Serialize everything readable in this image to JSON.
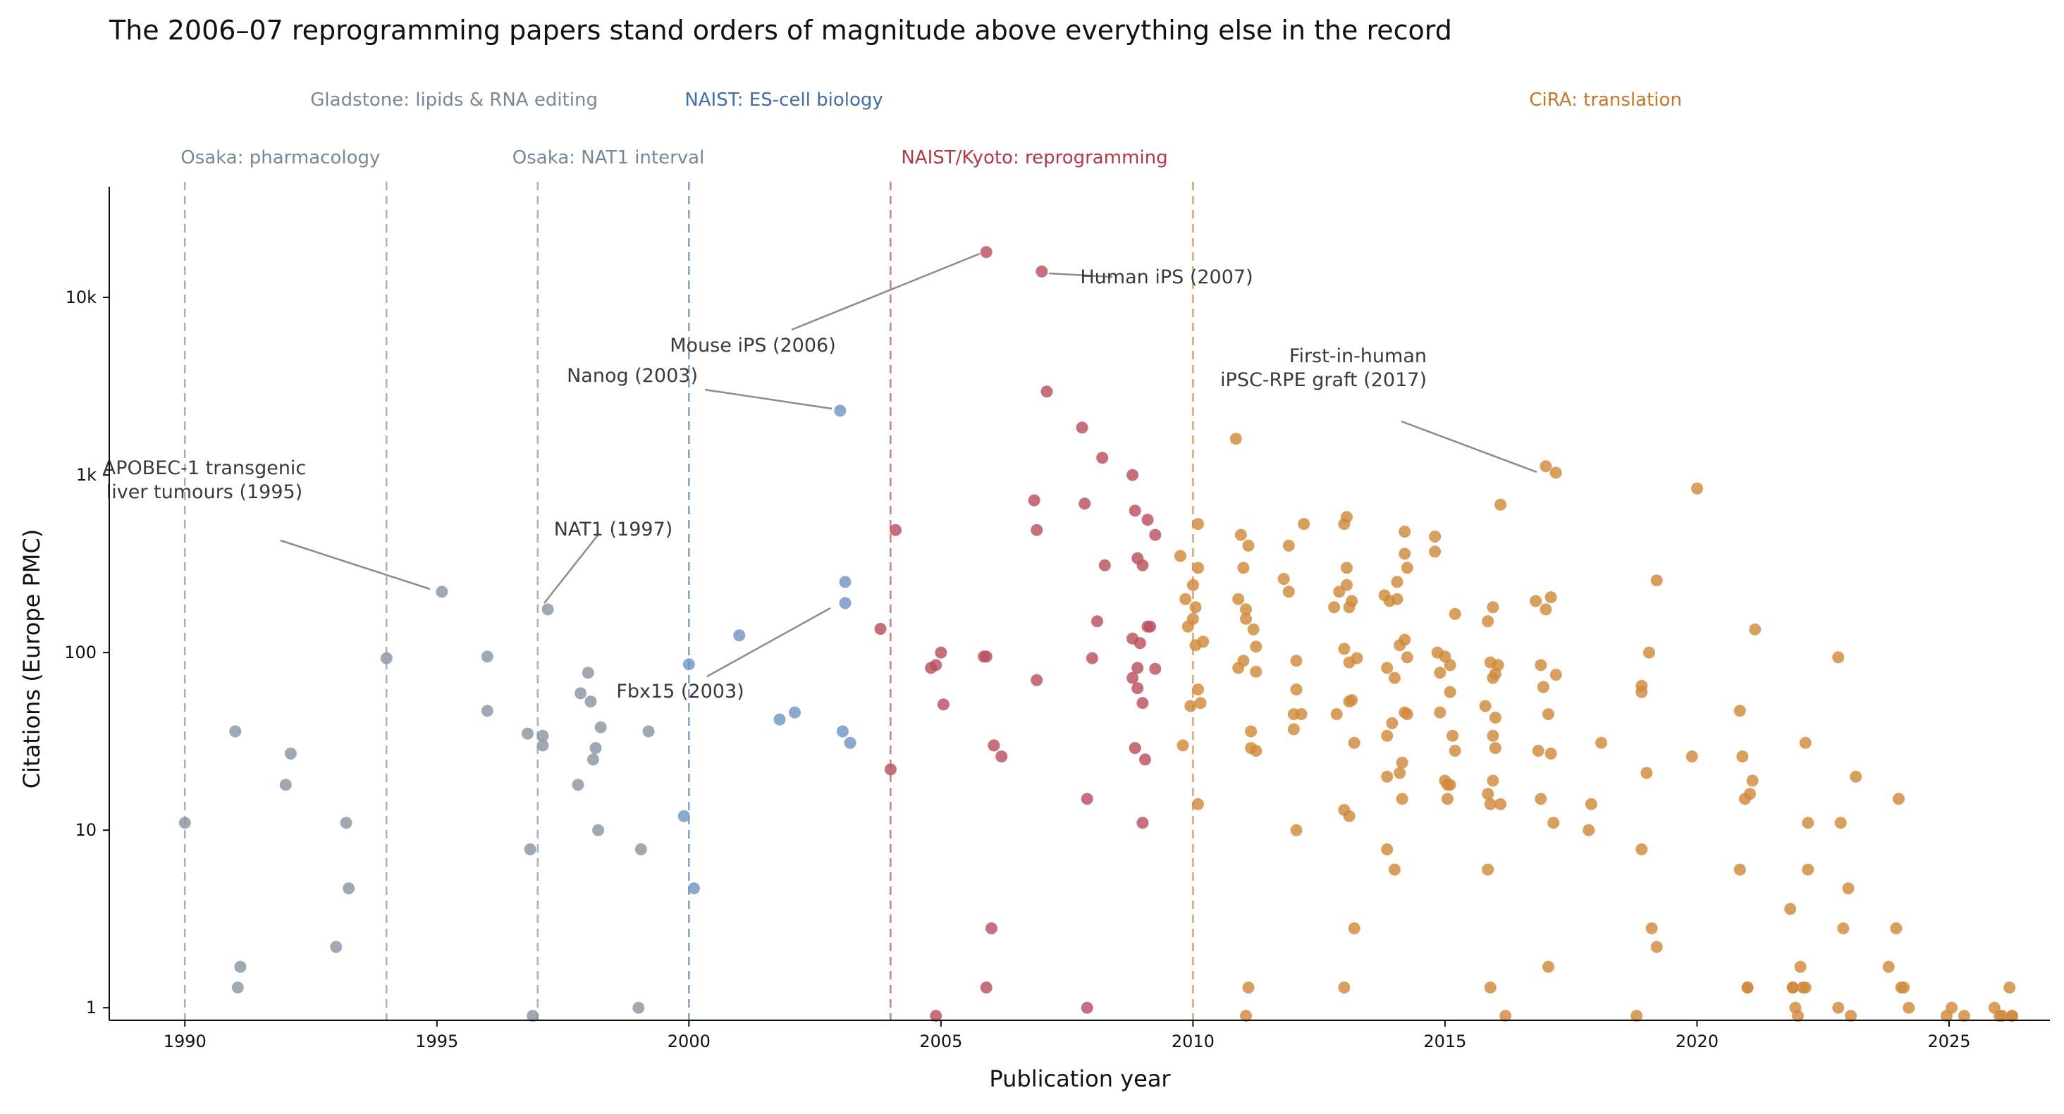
{
  "chart_data": {
    "type": "scatter",
    "title": "The 2006–07 reprogramming papers stand orders of magnitude above everything else in the record",
    "xlabel": "Publication year",
    "ylabel": "Citations (Europe PMC)",
    "xlim": [
      1988.5,
      2027
    ],
    "ylim_log": [
      0.85,
      42000
    ],
    "y_scale": "log",
    "x_ticks": [
      1990,
      1995,
      2000,
      2005,
      2010,
      2015,
      2020,
      2025
    ],
    "x_tick_labels": [
      "1990",
      "1995",
      "2000",
      "2005",
      "2010",
      "2015",
      "2020",
      "2025"
    ],
    "y_ticks": [
      1,
      10,
      100,
      1000,
      10000
    ],
    "y_tick_labels": [
      "1",
      "10",
      "100",
      "1k",
      "10k"
    ],
    "grid": false,
    "eras": [
      {
        "label": "Osaka: pharmacology",
        "start": 1990,
        "color": "#7a8896"
      },
      {
        "label": "Gladstone: lipids & RNA editing",
        "start": 1994,
        "color": "#7a8896"
      },
      {
        "label": "Osaka: NAT1 interval",
        "start": 1997,
        "color": "#7a8896"
      },
      {
        "label": "NAIST: ES-cell biology",
        "start": 2000,
        "color": "#3f6fa6"
      },
      {
        "label": "NAIST/Kyoto: reprogramming",
        "start": 2004,
        "color": "#b03a48"
      },
      {
        "label": "CiRA: translation",
        "start": 2010,
        "color": "#c8762a"
      }
    ],
    "series": [
      {
        "color": "#8a96a3",
        "points": [
          [
            1990,
            11
          ],
          [
            1991,
            36
          ],
          [
            1991.05,
            1.3
          ],
          [
            1991.1,
            1.7
          ],
          [
            1992,
            18
          ],
          [
            1992.1,
            27
          ],
          [
            1993,
            2.2
          ],
          [
            1993.2,
            11
          ],
          [
            1993.25,
            4.7
          ],
          [
            1994,
            93
          ],
          [
            1995.1,
            220
          ],
          [
            1996,
            95
          ],
          [
            1996,
            47
          ],
          [
            1996.8,
            35
          ],
          [
            1996.85,
            7.8
          ],
          [
            1996.9,
            0.9
          ],
          [
            1997.1,
            34
          ],
          [
            1997.1,
            30
          ],
          [
            1997.2,
            175
          ],
          [
            1997.8,
            18
          ],
          [
            1997.85,
            59
          ],
          [
            1998,
            77
          ],
          [
            1998.05,
            53
          ],
          [
            1998.1,
            25
          ],
          [
            1998.15,
            29
          ],
          [
            1998.2,
            10
          ],
          [
            1998.25,
            38
          ],
          [
            1999,
            1
          ],
          [
            1999.05,
            7.8
          ],
          [
            1999.2,
            36
          ]
        ]
      },
      {
        "color": "#7196c4",
        "points": [
          [
            1999.9,
            12
          ],
          [
            2000,
            86
          ],
          [
            2000.1,
            4.7
          ],
          [
            2001,
            125
          ],
          [
            2001.8,
            42
          ],
          [
            2002.1,
            46
          ],
          [
            2003,
            2300
          ],
          [
            2003.05,
            36
          ],
          [
            2003.1,
            250
          ],
          [
            2003.1,
            190
          ],
          [
            2003.2,
            31
          ]
        ]
      },
      {
        "color": "#b9505e",
        "points": [
          [
            2003.8,
            136
          ],
          [
            2004,
            22
          ],
          [
            2004.1,
            490
          ],
          [
            2004.8,
            82
          ],
          [
            2004.9,
            85
          ],
          [
            2004.9,
            0.9
          ],
          [
            2005,
            100
          ],
          [
            2005.05,
            51
          ],
          [
            2005.85,
            95
          ],
          [
            2005.9,
            95
          ],
          [
            2005.9,
            18000
          ],
          [
            2005.9,
            1.3
          ],
          [
            2006,
            2.8
          ],
          [
            2006.05,
            30
          ],
          [
            2006.2,
            26
          ],
          [
            2006.85,
            720
          ],
          [
            2006.9,
            490
          ],
          [
            2006.9,
            70
          ],
          [
            2007,
            14000
          ],
          [
            2007.1,
            2950
          ],
          [
            2007.8,
            1850
          ],
          [
            2007.85,
            690
          ],
          [
            2007.9,
            15
          ],
          [
            2007.9,
            1
          ],
          [
            2008,
            93
          ],
          [
            2008.1,
            150
          ],
          [
            2008.2,
            1250
          ],
          [
            2008.25,
            310
          ],
          [
            2008.8,
            1000
          ],
          [
            2008.85,
            630
          ],
          [
            2008.8,
            72
          ],
          [
            2008.8,
            120
          ],
          [
            2008.85,
            29
          ],
          [
            2008.9,
            340
          ],
          [
            2008.9,
            82
          ],
          [
            2008.9,
            63
          ],
          [
            2008.95,
            113
          ],
          [
            2009,
            310
          ],
          [
            2009,
            52
          ],
          [
            2009,
            11
          ],
          [
            2009.05,
            25
          ],
          [
            2009.1,
            140
          ],
          [
            2009.1,
            560
          ],
          [
            2009.15,
            140
          ],
          [
            2009.25,
            460
          ],
          [
            2009.25,
            81
          ]
        ]
      },
      {
        "color": "#d08a3c",
        "points": [
          [
            2009.75,
            350
          ],
          [
            2009.8,
            30
          ],
          [
            2009.85,
            200
          ],
          [
            2009.9,
            140
          ],
          [
            2009.95,
            50
          ],
          [
            2010,
            240
          ],
          [
            2010,
            155
          ],
          [
            2010.05,
            110
          ],
          [
            2010.05,
            180
          ],
          [
            2010.1,
            530
          ],
          [
            2010.1,
            300
          ],
          [
            2010.1,
            62
          ],
          [
            2010.1,
            14
          ],
          [
            2010.15,
            52
          ],
          [
            2010.2,
            115
          ],
          [
            2010.85,
            1600
          ],
          [
            2010.9,
            82
          ],
          [
            2010.9,
            200
          ],
          [
            2010.95,
            460
          ],
          [
            2011,
            300
          ],
          [
            2011,
            90
          ],
          [
            2011.05,
            175
          ],
          [
            2011.05,
            155
          ],
          [
            2011.05,
            0.9
          ],
          [
            2011.1,
            400
          ],
          [
            2011.1,
            1.3
          ],
          [
            2011.15,
            36
          ],
          [
            2011.15,
            29
          ],
          [
            2011.2,
            135
          ],
          [
            2011.25,
            78
          ],
          [
            2011.25,
            28
          ],
          [
            2011.25,
            108
          ],
          [
            2011.8,
            260
          ],
          [
            2011.9,
            400
          ],
          [
            2011.9,
            220
          ],
          [
            2012,
            45
          ],
          [
            2012,
            37
          ],
          [
            2012.05,
            90
          ],
          [
            2012.05,
            62
          ],
          [
            2012.05,
            10
          ],
          [
            2012.15,
            45
          ],
          [
            2012.2,
            530
          ],
          [
            2012.8,
            180
          ],
          [
            2012.85,
            45
          ],
          [
            2012.9,
            220
          ],
          [
            2013,
            1.3
          ],
          [
            2013,
            530
          ],
          [
            2013,
            13
          ],
          [
            2013,
            105
          ],
          [
            2013.05,
            580
          ],
          [
            2013.05,
            300
          ],
          [
            2013.05,
            240
          ],
          [
            2013.1,
            12
          ],
          [
            2013.1,
            53
          ],
          [
            2013.1,
            88
          ],
          [
            2013.1,
            180
          ],
          [
            2013.15,
            195
          ],
          [
            2013.15,
            54
          ],
          [
            2013.2,
            2.8
          ],
          [
            2013.2,
            31
          ],
          [
            2013.25,
            93
          ],
          [
            2013.8,
            210
          ],
          [
            2013.85,
            7.8
          ],
          [
            2013.85,
            34
          ],
          [
            2013.85,
            20
          ],
          [
            2013.85,
            82
          ],
          [
            2013.9,
            195
          ],
          [
            2013.95,
            40
          ],
          [
            2014,
            72
          ],
          [
            2014,
            6
          ],
          [
            2014.05,
            200
          ],
          [
            2014.05,
            250
          ],
          [
            2014.1,
            21
          ],
          [
            2014.1,
            110
          ],
          [
            2014.15,
            24
          ],
          [
            2014.15,
            15
          ],
          [
            2014.2,
            480
          ],
          [
            2014.2,
            118
          ],
          [
            2014.2,
            360
          ],
          [
            2014.2,
            46
          ],
          [
            2014.25,
            45
          ],
          [
            2014.25,
            300
          ],
          [
            2014.25,
            94
          ],
          [
            2014.8,
            450
          ],
          [
            2014.8,
            370
          ],
          [
            2014.85,
            100
          ],
          [
            2014.9,
            77
          ],
          [
            2014.9,
            46
          ],
          [
            2015,
            95
          ],
          [
            2015,
            19
          ],
          [
            2015.05,
            18
          ],
          [
            2015.05,
            15
          ],
          [
            2015.1,
            85
          ],
          [
            2015.1,
            18
          ],
          [
            2015.1,
            60
          ],
          [
            2015.15,
            34
          ],
          [
            2015.2,
            28
          ],
          [
            2015.2,
            165
          ],
          [
            2015.8,
            50
          ],
          [
            2015.85,
            6
          ],
          [
            2015.85,
            16
          ],
          [
            2015.85,
            150
          ],
          [
            2015.9,
            1.3
          ],
          [
            2015.9,
            14
          ],
          [
            2015.9,
            88
          ],
          [
            2015.95,
            180
          ],
          [
            2015.95,
            34
          ],
          [
            2015.95,
            72
          ],
          [
            2015.95,
            19
          ],
          [
            2016,
            43
          ],
          [
            2016,
            29
          ],
          [
            2016,
            76
          ],
          [
            2016.05,
            85
          ],
          [
            2016.1,
            14
          ],
          [
            2016.1,
            680
          ],
          [
            2016.2,
            0.9
          ],
          [
            2016.8,
            195
          ],
          [
            2016.85,
            28
          ],
          [
            2016.9,
            85
          ],
          [
            2016.9,
            15
          ],
          [
            2016.95,
            64
          ],
          [
            2017,
            1120
          ],
          [
            2017,
            175
          ],
          [
            2017.05,
            1.7
          ],
          [
            2017.05,
            45
          ],
          [
            2017.1,
            205
          ],
          [
            2017.1,
            27
          ],
          [
            2017.15,
            11
          ],
          [
            2017.2,
            1030
          ],
          [
            2017.2,
            75
          ],
          [
            2017.85,
            10
          ],
          [
            2017.9,
            14
          ],
          [
            2018.1,
            31
          ],
          [
            2018.8,
            0.9
          ],
          [
            2018.9,
            65
          ],
          [
            2018.9,
            60
          ],
          [
            2018.9,
            7.8
          ],
          [
            2019,
            21
          ],
          [
            2019.05,
            100
          ],
          [
            2019.1,
            2.8
          ],
          [
            2019.2,
            255
          ],
          [
            2019.2,
            2.2
          ],
          [
            2019.9,
            26
          ],
          [
            2020,
            840
          ],
          [
            2020.85,
            47
          ],
          [
            2020.85,
            6
          ],
          [
            2020.9,
            26
          ],
          [
            2020.95,
            15
          ],
          [
            2021,
            1.3
          ],
          [
            2021,
            1.3
          ],
          [
            2021.05,
            16
          ],
          [
            2021.1,
            19
          ],
          [
            2021.15,
            135
          ],
          [
            2021.85,
            3.6
          ],
          [
            2021.9,
            1.3
          ],
          [
            2021.9,
            1.3
          ],
          [
            2021.95,
            1
          ],
          [
            2022,
            0.9
          ],
          [
            2022.05,
            1.7
          ],
          [
            2022.1,
            1.3
          ],
          [
            2022.15,
            31
          ],
          [
            2022.15,
            1.3
          ],
          [
            2022.2,
            11
          ],
          [
            2022.2,
            6
          ],
          [
            2022.8,
            94
          ],
          [
            2022.8,
            1
          ],
          [
            2022.85,
            11
          ],
          [
            2022.9,
            2.8
          ],
          [
            2023,
            4.7
          ],
          [
            2023.05,
            0.9
          ],
          [
            2023.15,
            20
          ],
          [
            2023.8,
            1.7
          ],
          [
            2023.95,
            2.8
          ],
          [
            2024,
            15
          ],
          [
            2024.05,
            1.3
          ],
          [
            2024.1,
            1.3
          ],
          [
            2024.2,
            1
          ],
          [
            2024.95,
            0.9
          ],
          [
            2025.05,
            1
          ],
          [
            2025.3,
            0.9
          ],
          [
            2025.9,
            1
          ],
          [
            2026,
            0.9
          ],
          [
            2026.05,
            0.9
          ],
          [
            2026.2,
            1.3
          ],
          [
            2026.25,
            0.9
          ],
          [
            2026.25,
            0.9
          ]
        ]
      }
    ],
    "annotations": [
      {
        "text": "APOBEC-1 transgenic\nliver tumours (1995)",
        "x": 1995.1,
        "y": 220
      },
      {
        "text": "NAT1 (1997)",
        "x": 1997.2,
        "y": 175
      },
      {
        "text": "Nanog (2003)",
        "x": 2003,
        "y": 2300
      },
      {
        "text": "Fbx15 (2003)",
        "x": 2003.1,
        "y": 190
      },
      {
        "text": "Mouse iPS (2006)",
        "x": 2005.9,
        "y": 18000
      },
      {
        "text": "Human iPS (2007)",
        "x": 2007,
        "y": 14000
      },
      {
        "text": "First-in-human\niPSC-RPE graft (2017)",
        "x": 2017,
        "y": 1120
      }
    ]
  }
}
